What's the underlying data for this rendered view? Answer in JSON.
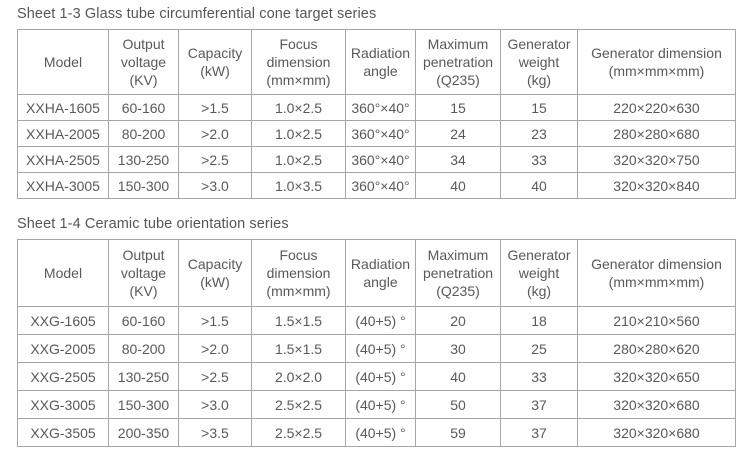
{
  "page": {
    "background_color": "#ffffff",
    "text_color": "#595959",
    "border_color": "#a6a6a6"
  },
  "tables": [
    {
      "title": "Sheet 1-3 Glass tube circumferential cone target series",
      "columns": [
        {
          "key": "model",
          "label": "Model"
        },
        {
          "key": "output-voltage",
          "label": "Output\nvoltage\n(KV)"
        },
        {
          "key": "capacity",
          "label": "Capacity\n(kW)"
        },
        {
          "key": "focus-dimension",
          "label": "Focus\ndimension\n(mm×mm)"
        },
        {
          "key": "radiation-angle",
          "label": "Radiation\nangle"
        },
        {
          "key": "maximum-penetration",
          "label": "Maximum\npenetration\n(Q235)"
        },
        {
          "key": "generator-weight",
          "label": "Generator\nweight\n(kg)"
        },
        {
          "key": "generator-dimension",
          "label": "Generator dimension\n(mm×mm×mm)"
        }
      ],
      "rows": [
        [
          "XXHA-1605",
          "60-160",
          ">1.5",
          "1.0×2.5",
          "360°×40°",
          "15",
          "15",
          "220×220×630"
        ],
        [
          "XXHA-2005",
          "80-200",
          ">2.0",
          "1.0×2.5",
          "360°×40°",
          "24",
          "23",
          "280×280×680"
        ],
        [
          "XXHA-2505",
          "130-250",
          ">2.5",
          "1.0×2.5",
          "360°×40°",
          "34",
          "33",
          "320×320×750"
        ],
        [
          "XXHA-3005",
          "150-300",
          ">3.0",
          "1.0×3.5",
          "360°×40°",
          "40",
          "40",
          "320×320×840"
        ]
      ]
    },
    {
      "title": "Sheet 1-4 Ceramic tube orientation series",
      "columns": [
        {
          "key": "model",
          "label": "Model"
        },
        {
          "key": "output-voltage",
          "label": "Output\nvoltage\n(KV)"
        },
        {
          "key": "capacity",
          "label": "Capacity\n(kW)"
        },
        {
          "key": "focus-dimension",
          "label": "Focus\ndimension\n(mm×mm)"
        },
        {
          "key": "radiation-angle",
          "label": "Radiation\nangle"
        },
        {
          "key": "maximum-penetration",
          "label": "Maximum\npenetration\n(Q235)"
        },
        {
          "key": "generator-weight",
          "label": "Generator\nweight\n(kg)"
        },
        {
          "key": "generator-dimension",
          "label": "Generator dimension\n(mm×mm×mm)"
        }
      ],
      "rows": [
        [
          "XXG-1605",
          "60-160",
          ">1.5",
          "1.5×1.5",
          "(40+5) °",
          "20",
          "18",
          "210×210×560"
        ],
        [
          "XXG-2005",
          "80-200",
          ">2.0",
          "1.5×1.5",
          "(40+5) °",
          "30",
          "25",
          "280×280×620"
        ],
        [
          "XXG-2505",
          "130-250",
          ">2.5",
          "2.0×2.0",
          "(40+5) °",
          "40",
          "33",
          "320×320×650"
        ],
        [
          "XXG-3005",
          "150-300",
          ">3.0",
          "2.5×2.5",
          "(40+5) °",
          "50",
          "37",
          "320×320×680"
        ],
        [
          "XXG-3505",
          "200-350",
          ">3.5",
          "2.5×2.5",
          "(40+5) °",
          "59",
          "37",
          "320×320×680"
        ]
      ]
    }
  ]
}
